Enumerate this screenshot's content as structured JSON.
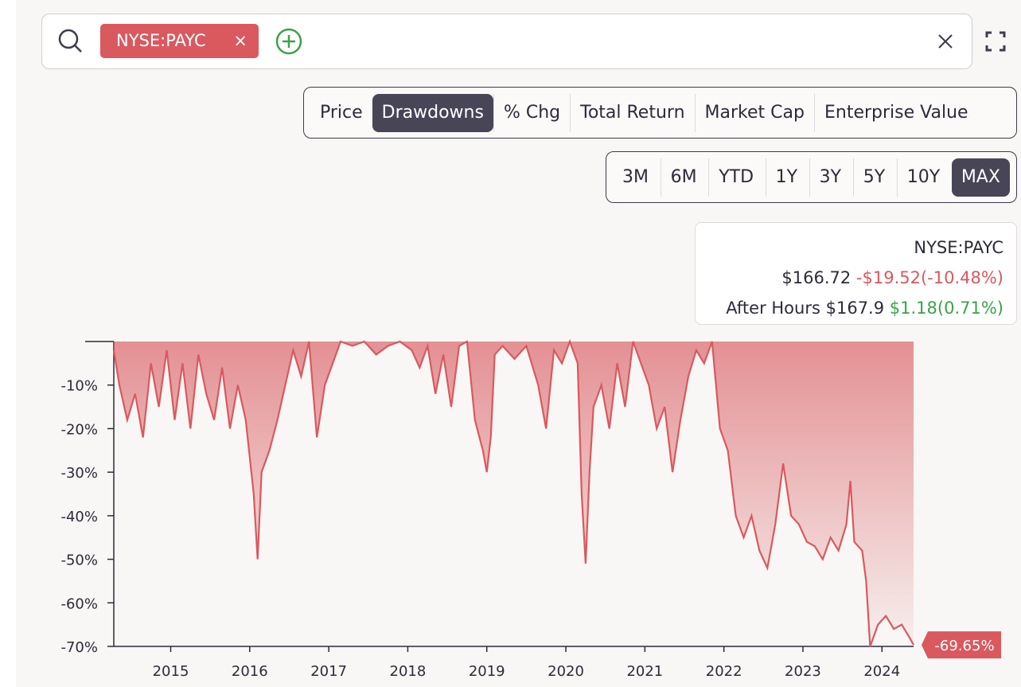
{
  "search": {
    "tags": [
      "NYSE:PAYC"
    ]
  },
  "tabs": {
    "items": [
      "Price",
      "Drawdowns",
      "% Chg",
      "Total Return",
      "Market Cap",
      "Enterprise Value"
    ],
    "active": 1
  },
  "ranges": {
    "items": [
      "3M",
      "6M",
      "YTD",
      "1Y",
      "3Y",
      "5Y",
      "10Y",
      "MAX"
    ],
    "active": 7
  },
  "quote": {
    "symbol": "NYSE:PAYC",
    "price": "$166.72",
    "change": "-$19.52(-10.48%)",
    "after_hours_label": "After Hours",
    "after_hours_price": "$167.9",
    "after_hours_change": "$1.18(0.71%)"
  },
  "chart_data": {
    "type": "area",
    "color": "#d9595f",
    "x": [
      2014.28,
      2014.35,
      2014.45,
      2014.55,
      2014.65,
      2014.75,
      2014.85,
      2014.95,
      2015.05,
      2015.15,
      2015.25,
      2015.35,
      2015.45,
      2015.55,
      2015.65,
      2015.75,
      2015.85,
      2015.95,
      2016.05,
      2016.1,
      2016.15,
      2016.25,
      2016.35,
      2016.45,
      2016.55,
      2016.65,
      2016.75,
      2016.85,
      2016.95,
      2017.05,
      2017.15,
      2017.3,
      2017.45,
      2017.6,
      2017.75,
      2017.9,
      2018.05,
      2018.15,
      2018.25,
      2018.35,
      2018.45,
      2018.55,
      2018.65,
      2018.75,
      2018.85,
      2018.95,
      2019.0,
      2019.05,
      2019.1,
      2019.2,
      2019.35,
      2019.5,
      2019.65,
      2019.75,
      2019.85,
      2019.95,
      2020.05,
      2020.15,
      2020.2,
      2020.25,
      2020.3,
      2020.35,
      2020.45,
      2020.55,
      2020.65,
      2020.75,
      2020.85,
      2020.95,
      2021.05,
      2021.15,
      2021.25,
      2021.35,
      2021.45,
      2021.55,
      2021.65,
      2021.75,
      2021.85,
      2021.95,
      2022.05,
      2022.15,
      2022.25,
      2022.35,
      2022.45,
      2022.55,
      2022.65,
      2022.75,
      2022.85,
      2022.95,
      2023.05,
      2023.15,
      2023.25,
      2023.35,
      2023.45,
      2023.55,
      2023.6,
      2023.65,
      2023.75,
      2023.8,
      2023.85,
      2023.95,
      2024.05,
      2024.15,
      2024.25,
      2024.35,
      2024.4
    ],
    "values": [
      -2,
      -10,
      -18,
      -12,
      -22,
      -5,
      -15,
      -2,
      -18,
      -5,
      -20,
      -3,
      -12,
      -18,
      -6,
      -20,
      -10,
      -18,
      -35,
      -50,
      -30,
      -25,
      -18,
      -10,
      -2,
      -8,
      0,
      -22,
      -10,
      -5,
      0,
      -1,
      0,
      -3,
      -1,
      0,
      -2,
      -6,
      -1,
      -12,
      -3,
      -15,
      -1,
      0,
      -18,
      -25,
      -30,
      -22,
      -3,
      -1,
      -4,
      -1,
      -10,
      -20,
      -2,
      -5,
      0,
      -5,
      -35,
      -51,
      -30,
      -15,
      -10,
      -20,
      -5,
      -15,
      0,
      -5,
      -10,
      -20,
      -15,
      -30,
      -18,
      -8,
      -2,
      -5,
      0,
      -20,
      -25,
      -40,
      -45,
      -40,
      -48,
      -52,
      -42,
      -28,
      -40,
      -42,
      -46,
      -47,
      -50,
      -45,
      -48,
      -42,
      -32,
      -46,
      -48,
      -55,
      -70,
      -65,
      -63,
      -66,
      -65,
      -68,
      -69.65
    ],
    "value_labels": [
      null,
      null,
      null,
      null,
      null,
      null,
      null,
      null,
      null,
      null,
      null,
      null,
      null,
      null,
      null,
      null,
      null,
      null,
      null,
      null,
      null,
      null,
      null,
      null,
      null,
      null,
      null,
      null,
      null,
      null,
      null,
      null,
      null,
      null,
      null,
      null,
      null,
      null,
      null,
      null,
      null,
      null,
      null,
      null,
      null,
      null,
      null,
      null,
      null,
      null,
      null,
      null,
      null,
      null,
      null,
      null,
      null,
      null,
      null,
      null,
      null,
      null,
      null,
      null,
      null,
      null,
      null,
      null,
      null,
      null,
      null,
      null,
      null,
      null,
      null,
      null,
      null,
      null,
      null,
      null,
      null,
      null,
      null,
      null,
      null,
      null,
      null,
      null,
      null,
      null,
      null,
      null,
      null,
      null,
      null,
      null,
      null,
      null,
      null,
      null,
      null,
      null,
      null,
      null,
      "-69.65%"
    ],
    "xlim": [
      2014.28,
      2024.4
    ],
    "ylim": [
      -70,
      0
    ],
    "xticks": [
      2015,
      2016,
      2017,
      2018,
      2019,
      2020,
      2021,
      2022,
      2023,
      2024
    ],
    "yticks": [
      {
        "value": -10,
        "label": "-10%"
      },
      {
        "value": -20,
        "label": "-20%"
      },
      {
        "value": -30,
        "label": "-30%"
      },
      {
        "value": -40,
        "label": "-40%"
      },
      {
        "value": -50,
        "label": "-50%"
      },
      {
        "value": -60,
        "label": "-60%"
      },
      {
        "value": -70,
        "label": "-70%"
      }
    ]
  }
}
